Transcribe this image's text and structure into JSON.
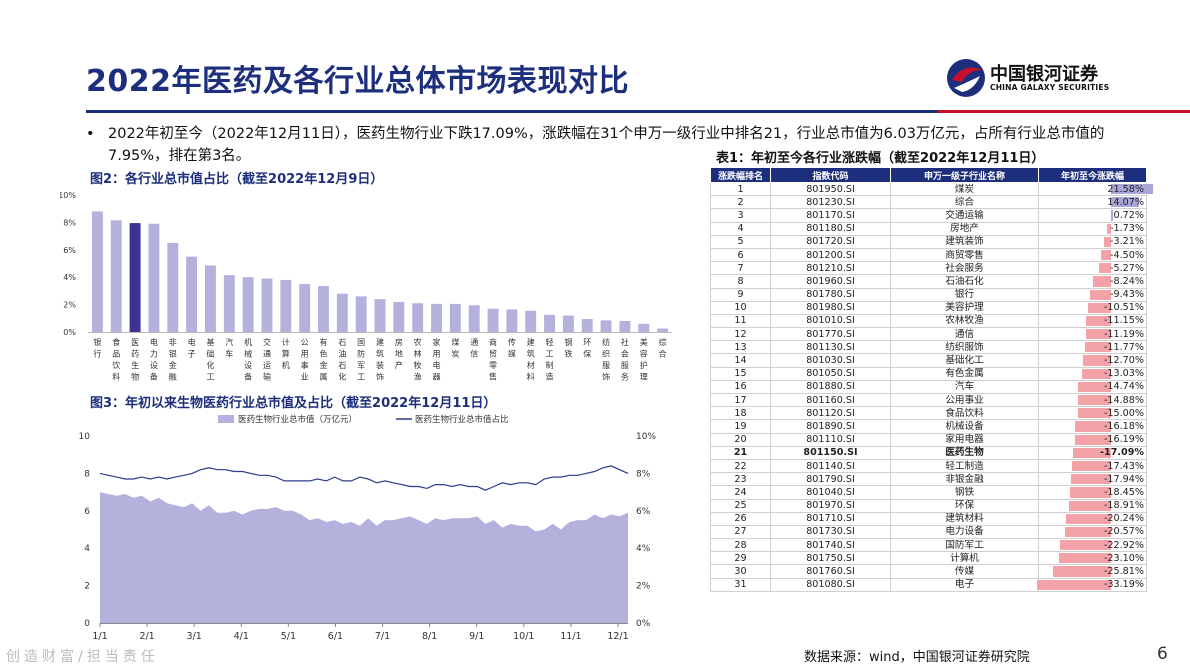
{
  "page": {
    "title": "2022年医药及各行业总体市场表现对比",
    "logo_cn": "中国银河证券",
    "logo_en": "CHINA GALAXY SECURITIES",
    "bullet": "2022年初至今（2022年12月11日），医药生物行业下跌17.09%，涨跌幅在31个申万一级行业中排名21，行业总市值为6.03万亿元，占所有行业总市值的7.95%，排在第3名。",
    "source": "数据来源：wind，中国银河证券研究院",
    "page_number": "6",
    "footer": "创造财富/担当责任"
  },
  "colors": {
    "navy": "#1d2f7c",
    "bar": "#b4b1dd",
    "bar_highlight": "#3c3292",
    "area": "#b4b1dd",
    "line": "#2b3a8c",
    "pos_bar": "#a9a7d9",
    "neg_bar": "#f3a3a8"
  },
  "chart_data": [
    {
      "type": "bar",
      "title": "图2：各行业总市值占比（截至2022年12月9日）",
      "categories": [
        "银行",
        "食品饮料",
        "医药生物",
        "电力设备",
        "非银金融",
        "电子",
        "基础化工",
        "汽车",
        "机械设备",
        "交通运输",
        "计算机",
        "公用事业",
        "有色金属",
        "石油石化",
        "国防军工",
        "建筑装饰",
        "房地产",
        "农林牧渔",
        "家用电器",
        "煤炭",
        "通信",
        "商贸零售",
        "传媒",
        "建筑材料",
        "轻工制造",
        "钢铁",
        "环保",
        "纺织服饰",
        "社会服务",
        "美容护理",
        "综合"
      ],
      "values": [
        8.8,
        8.15,
        7.95,
        7.9,
        6.5,
        5.5,
        4.85,
        4.15,
        4.0,
        3.9,
        3.8,
        3.5,
        3.35,
        2.8,
        2.6,
        2.4,
        2.2,
        2.1,
        2.05,
        2.05,
        1.95,
        1.7,
        1.65,
        1.55,
        1.25,
        1.2,
        0.95,
        0.85,
        0.8,
        0.6,
        0.25
      ],
      "highlight": "医药生物",
      "yticks": [
        "0%",
        "2%",
        "4%",
        "6%",
        "8%",
        "10%"
      ],
      "ylim": [
        0,
        10
      ]
    },
    {
      "type": "area",
      "title": "图3：年初以来生物医药行业总市值及占比（截至2022年12月11日）",
      "series": [
        {
          "name": "医药生物行业总市值（万亿元）",
          "type": "area",
          "axis": "left",
          "values": [
            7.0,
            6.9,
            6.8,
            6.9,
            6.7,
            6.8,
            6.5,
            6.7,
            6.4,
            6.3,
            6.2,
            6.4,
            6.0,
            6.3,
            5.9,
            5.9,
            6.0,
            5.8,
            6.0,
            6.1,
            6.1,
            6.2,
            6.0,
            6.0,
            5.8,
            5.5,
            5.6,
            5.4,
            5.5,
            5.3,
            5.4,
            5.2,
            5.6,
            5.2,
            5.5,
            5.5,
            5.6,
            5.7,
            5.5,
            5.3,
            5.6,
            5.5,
            5.6,
            5.6,
            5.6,
            5.7,
            5.3,
            5.5,
            5.1,
            5.3,
            5.2,
            5.2,
            4.9,
            5.0,
            5.3,
            5.0,
            5.4,
            5.5,
            5.5,
            5.8,
            5.6,
            5.8,
            5.7,
            5.9
          ]
        },
        {
          "name": "医药生物行业总市值占比",
          "type": "line",
          "axis": "right",
          "values": [
            8.0,
            7.9,
            7.8,
            7.7,
            7.7,
            7.8,
            7.7,
            7.8,
            7.7,
            7.8,
            7.9,
            8.0,
            8.2,
            8.3,
            8.2,
            8.2,
            8.1,
            8.1,
            8.0,
            7.9,
            7.9,
            7.8,
            7.6,
            7.6,
            7.6,
            7.6,
            7.7,
            7.6,
            7.8,
            7.6,
            7.6,
            7.8,
            7.7,
            7.5,
            7.6,
            7.5,
            7.4,
            7.3,
            7.3,
            7.2,
            7.4,
            7.4,
            7.3,
            7.4,
            7.3,
            7.3,
            7.1,
            7.3,
            7.5,
            7.4,
            7.5,
            7.5,
            7.4,
            7.7,
            7.8,
            7.8,
            7.9,
            7.9,
            8.0,
            8.1,
            8.3,
            8.4,
            8.2,
            8.0
          ]
        }
      ],
      "xticks": [
        "1/1",
        "2/1",
        "3/1",
        "4/1",
        "5/1",
        "6/1",
        "7/1",
        "8/1",
        "9/1",
        "10/1",
        "11/1",
        "12/1"
      ],
      "yticks_left": [
        "0",
        "2",
        "4",
        "6",
        "8",
        "10"
      ],
      "yticks_right": [
        "0%",
        "2%",
        "4%",
        "6%",
        "8%",
        "10%"
      ],
      "ylim_left": [
        0,
        10
      ],
      "ylim_right": [
        0,
        10
      ]
    },
    {
      "type": "table",
      "title": "表1：年初至今各行业涨跌幅（截至2022年12月11日）",
      "headers": [
        "涨跌幅排名",
        "指数代码",
        "申万一级子行业名称",
        "年初至今涨跌幅"
      ],
      "rows": [
        [
          "1",
          "801950.SI",
          "煤炭",
          "21.58%"
        ],
        [
          "2",
          "801230.SI",
          "综合",
          "14.07%"
        ],
        [
          "3",
          "801170.SI",
          "交通运输",
          "0.72%"
        ],
        [
          "4",
          "801180.SI",
          "房地产",
          "-1.73%"
        ],
        [
          "5",
          "801720.SI",
          "建筑装饰",
          "-3.21%"
        ],
        [
          "6",
          "801200.SI",
          "商贸零售",
          "-4.50%"
        ],
        [
          "7",
          "801210.SI",
          "社会服务",
          "-5.27%"
        ],
        [
          "8",
          "801960.SI",
          "石油石化",
          "-8.24%"
        ],
        [
          "9",
          "801780.SI",
          "银行",
          "-9.43%"
        ],
        [
          "10",
          "801980.SI",
          "美容护理",
          "-10.51%"
        ],
        [
          "11",
          "801010.SI",
          "农林牧渔",
          "-11.15%"
        ],
        [
          "12",
          "801770.SI",
          "通信",
          "-11.19%"
        ],
        [
          "13",
          "801130.SI",
          "纺织服饰",
          "-11.77%"
        ],
        [
          "14",
          "801030.SI",
          "基础化工",
          "-12.70%"
        ],
        [
          "15",
          "801050.SI",
          "有色金属",
          "-13.03%"
        ],
        [
          "16",
          "801880.SI",
          "汽车",
          "-14.74%"
        ],
        [
          "17",
          "801160.SI",
          "公用事业",
          "-14.88%"
        ],
        [
          "18",
          "801120.SI",
          "食品饮料",
          "-15.00%"
        ],
        [
          "19",
          "801890.SI",
          "机械设备",
          "-16.18%"
        ],
        [
          "20",
          "801110.SI",
          "家用电器",
          "-16.19%"
        ],
        [
          "21",
          "801150.SI",
          "医药生物",
          "-17.09%"
        ],
        [
          "22",
          "801140.SI",
          "轻工制造",
          "-17.43%"
        ],
        [
          "23",
          "801790.SI",
          "非银金融",
          "-17.94%"
        ],
        [
          "24",
          "801040.SI",
          "钢铁",
          "-18.45%"
        ],
        [
          "25",
          "801970.SI",
          "环保",
          "-18.91%"
        ],
        [
          "26",
          "801710.SI",
          "建筑材料",
          "-20.24%"
        ],
        [
          "27",
          "801730.SI",
          "电力设备",
          "-20.57%"
        ],
        [
          "28",
          "801740.SI",
          "国防军工",
          "-22.92%"
        ],
        [
          "29",
          "801750.SI",
          "计算机",
          "-23.10%"
        ],
        [
          "30",
          "801760.SI",
          "传媒",
          "-25.81%"
        ],
        [
          "31",
          "801080.SI",
          "电子",
          "-33.19%"
        ]
      ],
      "changes": [
        21.58,
        14.07,
        0.72,
        -1.73,
        -3.21,
        -4.5,
        -5.27,
        -8.24,
        -9.43,
        -10.51,
        -11.15,
        -11.19,
        -11.77,
        -12.7,
        -13.03,
        -14.74,
        -14.88,
        -15.0,
        -16.18,
        -16.19,
        -17.09,
        -17.43,
        -17.94,
        -18.45,
        -18.91,
        -20.24,
        -20.57,
        -22.92,
        -23.1,
        -25.81,
        -33.19
      ],
      "highlight_row": 20
    }
  ]
}
